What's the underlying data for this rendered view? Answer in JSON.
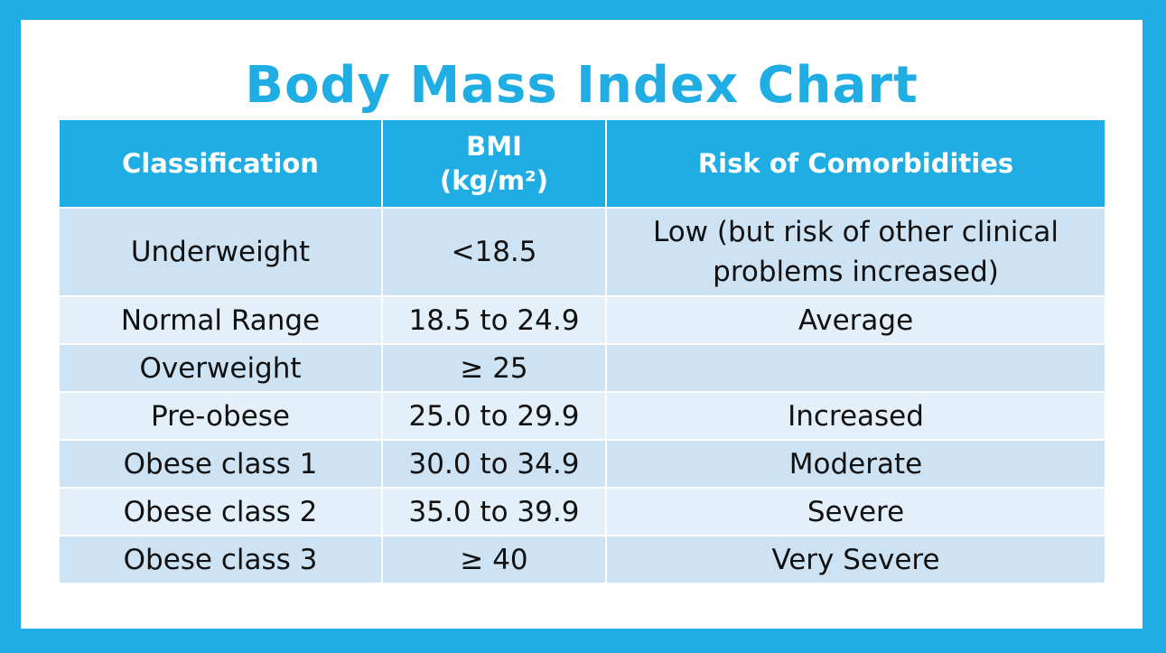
{
  "title": "Body Mass Index Chart",
  "colors": {
    "accent": "#1fade3",
    "row_dark": "#cde3f4",
    "row_light": "#e3f0fa"
  },
  "chart_data": {
    "type": "table",
    "title": "Body Mass Index Chart",
    "headers": {
      "classification": "Classification",
      "bmi_line1": "BMI",
      "bmi_line2": "(kg/m²)",
      "risk": "Risk of Comorbidities"
    },
    "rows": [
      {
        "classification": "Underweight",
        "bmi": "<18.5",
        "risk_line1": "Low (but risk of other clinical",
        "risk_line2": "problems increased)"
      },
      {
        "classification": "Normal Range",
        "bmi": "18.5 to 24.9",
        "risk": "Average"
      },
      {
        "classification": "Overweight",
        "bmi": "≥ 25",
        "risk": ""
      },
      {
        "classification": "Pre-obese",
        "bmi": "25.0 to 29.9",
        "risk": "Increased"
      },
      {
        "classification": "Obese class 1",
        "bmi": "30.0 to 34.9",
        "risk": "Moderate"
      },
      {
        "classification": "Obese class 2",
        "bmi": "35.0 to 39.9",
        "risk": "Severe"
      },
      {
        "classification": "Obese class 3",
        "bmi": "≥ 40",
        "risk": "Very Severe"
      }
    ]
  }
}
